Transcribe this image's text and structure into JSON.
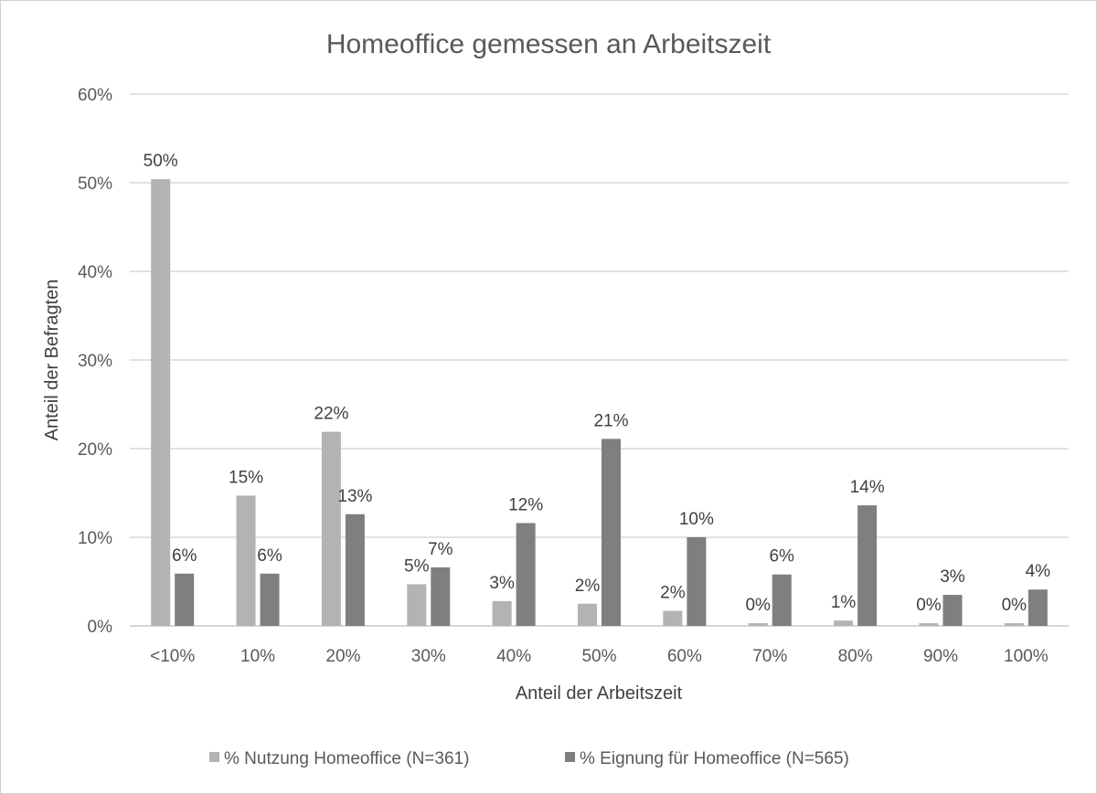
{
  "chart_data": {
    "type": "bar",
    "title": "Homeoffice gemessen an Arbeitszeit",
    "xlabel": "Anteil der Arbeitszeit",
    "ylabel": "Anteil der Befragten",
    "categories": [
      "<10%",
      "10%",
      "20%",
      "30%",
      "40%",
      "50%",
      "60%",
      "70%",
      "80%",
      "90%",
      "100%"
    ],
    "yticks": [
      "0%",
      "10%",
      "20%",
      "30%",
      "40%",
      "50%",
      "60%"
    ],
    "ylim": [
      0,
      60
    ],
    "grid": true,
    "legend_position": "bottom",
    "series": [
      {
        "name": "% Nutzung Homeoffice (N=361)",
        "color": "#b3b3b3",
        "values": [
          50.4,
          14.7,
          21.9,
          4.7,
          2.8,
          2.5,
          1.7,
          0.3,
          0.6,
          0.3,
          0.3
        ],
        "labels": [
          "50%",
          "15%",
          "22%",
          "5%",
          "3%",
          "2%",
          "2%",
          "0%",
          "1%",
          "0%",
          "0%"
        ]
      },
      {
        "name": "% Eignung für Homeoffice (N=565)",
        "color": "#7f7f7f",
        "values": [
          5.9,
          5.9,
          12.6,
          6.6,
          11.6,
          21.1,
          10.0,
          5.8,
          13.6,
          3.5,
          4.1
        ],
        "labels": [
          "6%",
          "6%",
          "13%",
          "7%",
          "12%",
          "21%",
          "10%",
          "6%",
          "14%",
          "3%",
          "4%"
        ]
      }
    ]
  }
}
